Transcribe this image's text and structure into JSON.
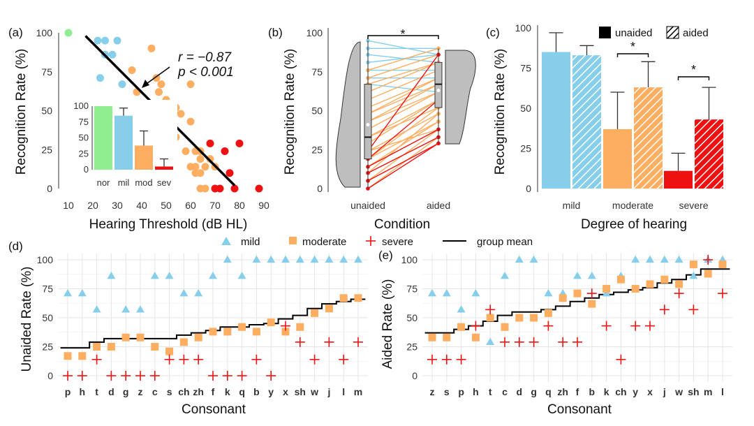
{
  "colors": {
    "mild": "#87CEEB",
    "moderate": "#FDAE61",
    "severe": "#EE1111",
    "normal": "#90EE90",
    "grey": "#BEBEBE",
    "line": "#000000",
    "grid": "#E5E5E5"
  },
  "chart_data": [
    {
      "panel": "(a)",
      "type": "scatter",
      "xlabel": "Hearing Threshold (dB HL)",
      "ylabel": "Recognition Rate (%)",
      "xlim": [
        7,
        90
      ],
      "ylim": [
        0,
        100
      ],
      "xticks": [
        10,
        20,
        30,
        40,
        50,
        60,
        70,
        80,
        90
      ],
      "yticks": [
        0,
        25,
        50,
        75,
        100
      ],
      "groups": [
        {
          "name": "normal",
          "points": [
            [
              10,
              100
            ]
          ]
        },
        {
          "name": "mild",
          "points": [
            [
              22,
              95
            ],
            [
              25,
              95
            ],
            [
              25,
              86
            ],
            [
              28,
              86
            ],
            [
              30,
              95
            ],
            [
              23,
              71
            ],
            [
              32,
              67
            ]
          ]
        },
        {
          "name": "moderate",
          "points": [
            [
              44,
              90
            ],
            [
              36,
              76
            ],
            [
              46,
              71
            ],
            [
              48,
              67
            ],
            [
              38,
              62
            ],
            [
              47,
              62
            ],
            [
              50,
              57
            ],
            [
              36,
              52
            ],
            [
              52,
              52
            ],
            [
              54,
              52
            ],
            [
              56,
              48
            ],
            [
              60,
              67
            ],
            [
              40,
              48
            ],
            [
              44,
              48
            ],
            [
              37,
              43
            ],
            [
              50,
              38
            ],
            [
              60,
              43
            ],
            [
              54,
              33
            ],
            [
              45,
              33
            ],
            [
              58,
              24
            ],
            [
              62,
              24
            ],
            [
              64,
              24
            ],
            [
              68,
              19
            ],
            [
              64,
              19
            ],
            [
              60,
              14
            ],
            [
              62,
              14
            ],
            [
              66,
              14
            ],
            [
              70,
              14
            ],
            [
              64,
              10
            ],
            [
              62,
              10
            ],
            [
              64,
              0
            ],
            [
              66,
              0
            ]
          ]
        },
        {
          "name": "severe",
          "points": [
            [
              68,
              29
            ],
            [
              74,
              24
            ],
            [
              76,
              10
            ],
            [
              70,
              0
            ],
            [
              72,
              0
            ],
            [
              78,
              0
            ],
            [
              80,
              29
            ],
            [
              88,
              0
            ]
          ]
        }
      ],
      "regression": {
        "x": [
          17,
          78
        ],
        "y": [
          98,
          2
        ]
      },
      "annotation": {
        "r": "r = −0.87",
        "p": "p < 0.001"
      },
      "inset": {
        "type": "bar",
        "categories": [
          "nor",
          "mil",
          "mod",
          "sev"
        ],
        "values": [
          100,
          85,
          38,
          5
        ],
        "errors": [
          0,
          12,
          23,
          12
        ],
        "ylim": [
          0,
          100
        ],
        "yticks": [
          0,
          25,
          50,
          75,
          100
        ]
      }
    },
    {
      "panel": "(b)",
      "type": "paired-line",
      "xlabel": "Condition",
      "ylabel": "Recognition Rate (%)",
      "categories": [
        "unaided",
        "aided"
      ],
      "ylim": [
        0,
        100
      ],
      "yticks": [
        0,
        25,
        50,
        75,
        100
      ],
      "significance": "*",
      "pairs": [
        {
          "g": "mild",
          "u": 95,
          "a": 86
        },
        {
          "g": "mild",
          "u": 90,
          "a": 90
        },
        {
          "g": "mild",
          "u": 86,
          "a": 81
        },
        {
          "g": "mild",
          "u": 81,
          "a": 86
        },
        {
          "g": "mild",
          "u": 76,
          "a": 76
        },
        {
          "g": "mild",
          "u": 71,
          "a": 71
        },
        {
          "g": "mild",
          "u": 67,
          "a": 62
        },
        {
          "g": "moderate",
          "u": 76,
          "a": 90
        },
        {
          "g": "moderate",
          "u": 71,
          "a": 86
        },
        {
          "g": "moderate",
          "u": 67,
          "a": 81
        },
        {
          "g": "moderate",
          "u": 62,
          "a": 81
        },
        {
          "g": "moderate",
          "u": 57,
          "a": 76
        },
        {
          "g": "moderate",
          "u": 52,
          "a": 71
        },
        {
          "g": "moderate",
          "u": 48,
          "a": 71
        },
        {
          "g": "moderate",
          "u": 48,
          "a": 67
        },
        {
          "g": "moderate",
          "u": 43,
          "a": 67
        },
        {
          "g": "moderate",
          "u": 43,
          "a": 62
        },
        {
          "g": "moderate",
          "u": 38,
          "a": 62
        },
        {
          "g": "moderate",
          "u": 33,
          "a": 57
        },
        {
          "g": "moderate",
          "u": 33,
          "a": 52
        },
        {
          "g": "moderate",
          "u": 29,
          "a": 57
        },
        {
          "g": "moderate",
          "u": 24,
          "a": 48
        },
        {
          "g": "moderate",
          "u": 19,
          "a": 52
        },
        {
          "g": "moderate",
          "u": 14,
          "a": 43
        },
        {
          "g": "moderate",
          "u": 10,
          "a": 48
        },
        {
          "g": "moderate",
          "u": 5,
          "a": 38
        },
        {
          "g": "moderate",
          "u": 0,
          "a": 33
        },
        {
          "g": "moderate",
          "u": 19,
          "a": 43
        },
        {
          "g": "moderate",
          "u": 24,
          "a": 38
        },
        {
          "g": "severe",
          "u": 24,
          "a": 86
        },
        {
          "g": "severe",
          "u": 19,
          "a": 57
        },
        {
          "g": "severe",
          "u": 14,
          "a": 38
        },
        {
          "g": "severe",
          "u": 10,
          "a": 33
        },
        {
          "g": "severe",
          "u": 5,
          "a": 29
        },
        {
          "g": "severe",
          "u": 0,
          "a": 29
        }
      ],
      "boxplots": [
        {
          "cat": "unaided",
          "q1": 19,
          "median": 33,
          "q3": 67,
          "mean": 41,
          "min": 0,
          "max": 95
        },
        {
          "cat": "aided",
          "q1": 52,
          "median": 67,
          "q3": 81,
          "mean": 63,
          "min": 29,
          "max": 90
        }
      ]
    },
    {
      "panel": "(c)",
      "type": "bar",
      "xlabel": "Degree of hearing",
      "ylabel": "Recognition Rate (%)",
      "categories": [
        "mild",
        "moderate",
        "severe"
      ],
      "series": [
        {
          "name": "unaided",
          "values": [
            85,
            37,
            11
          ],
          "errors": [
            12,
            23,
            11
          ]
        },
        {
          "name": "aided",
          "values": [
            83,
            63,
            43
          ],
          "errors": [
            6,
            16,
            20
          ]
        }
      ],
      "ylim": [
        0,
        100
      ],
      "yticks": [
        0,
        25,
        50,
        75,
        100
      ],
      "significance": [
        {
          "category": "moderate",
          "label": "*"
        },
        {
          "category": "severe",
          "label": "*"
        }
      ],
      "legend": [
        "unaided",
        "aided"
      ]
    },
    {
      "panel": "(d)",
      "type": "scatter",
      "xlabel": "Consonant",
      "ylabel": "Unaided Rate (%)",
      "categories": [
        "p",
        "h",
        "t",
        "d",
        "g",
        "z",
        "c",
        "s",
        "ch",
        "zh",
        "f",
        "k",
        "q",
        "b",
        "y",
        "x",
        "sh",
        "w",
        "j",
        "l",
        "m"
      ],
      "ylim": [
        0,
        100
      ],
      "yticks": [
        0,
        25,
        50,
        75,
        100
      ],
      "series": [
        {
          "name": "mild",
          "values": [
            71,
            71,
            57,
            86,
            57,
            57,
            86,
            86,
            71,
            71,
            86,
            100,
            86,
            100,
            100,
            100,
            100,
            100,
            100,
            100,
            100
          ]
        },
        {
          "name": "moderate",
          "values": [
            17,
            17,
            25,
            25,
            33,
            33,
            25,
            21,
            29,
            33,
            38,
            38,
            42,
            38,
            46,
            38,
            42,
            54,
            58,
            67,
            67
          ]
        },
        {
          "name": "severe",
          "values": [
            0,
            0,
            14,
            0,
            0,
            0,
            0,
            14,
            14,
            14,
            0,
            0,
            0,
            14,
            0,
            43,
            29,
            14,
            29,
            14,
            29
          ]
        },
        {
          "name": "group mean",
          "values": [
            24,
            24,
            29,
            32,
            32,
            32,
            32,
            32,
            35,
            37,
            39,
            42,
            42,
            44,
            45,
            49,
            52,
            58,
            62,
            64,
            66
          ]
        }
      ]
    },
    {
      "panel": "(e)",
      "type": "scatter",
      "xlabel": "Consonant",
      "ylabel": "Aided Rate (%)",
      "categories": [
        "z",
        "s",
        "p",
        "h",
        "t",
        "c",
        "d",
        "g",
        "q",
        "zh",
        "f",
        "b",
        "k",
        "ch",
        "y",
        "x",
        "j",
        "w",
        "sh",
        "m",
        "l"
      ],
      "ylim": [
        0,
        100
      ],
      "yticks": [
        0,
        25,
        50,
        75,
        100
      ],
      "series": [
        {
          "name": "mild",
          "values": [
            71,
            71,
            57,
            71,
            29,
            86,
            100,
            100,
            71,
            71,
            86,
            86,
            71,
            86,
            100,
            100,
            100,
            100,
            86,
            100,
            100
          ]
        },
        {
          "name": "moderate",
          "values": [
            33,
            33,
            42,
            33,
            50,
            42,
            50,
            50,
            54,
            67,
            71,
            62,
            75,
            83,
            75,
            79,
            83,
            79,
            96,
            88,
            96
          ]
        },
        {
          "name": "severe",
          "values": [
            14,
            14,
            14,
            43,
            57,
            29,
            29,
            29,
            43,
            29,
            29,
            71,
            43,
            14,
            43,
            43,
            57,
            71,
            57,
            100,
            71
          ]
        },
        {
          "name": "group mean",
          "values": [
            37,
            37,
            40,
            43,
            47,
            52,
            55,
            55,
            57,
            60,
            64,
            67,
            70,
            72,
            74,
            76,
            80,
            83,
            87,
            92,
            92
          ]
        }
      ]
    }
  ],
  "legend_de": [
    "mild",
    "moderate",
    "severe",
    "group mean"
  ]
}
